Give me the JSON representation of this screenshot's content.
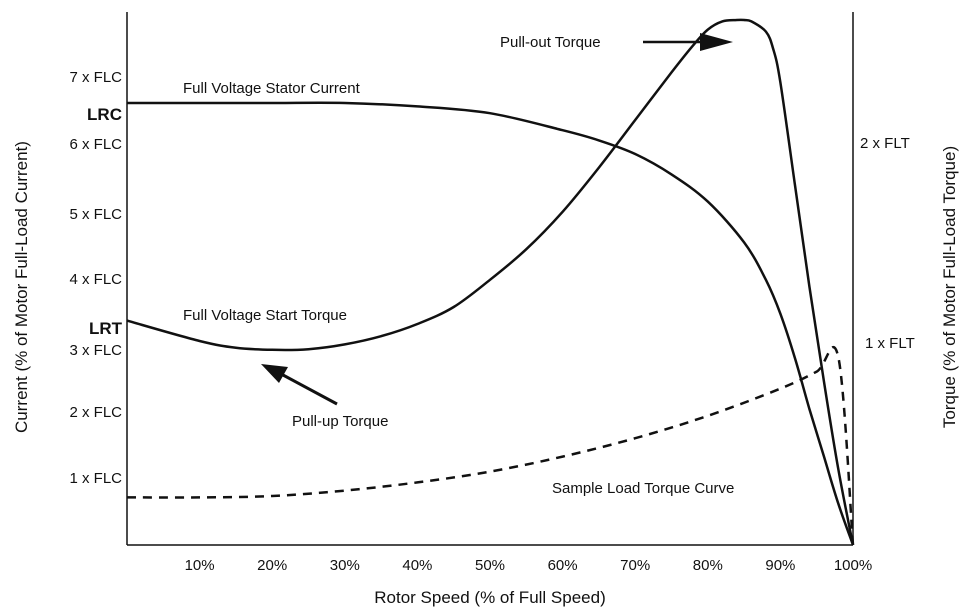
{
  "chart_data": {
    "type": "line",
    "title": "",
    "xlabel": "Rotor Speed (% of Full Speed)",
    "ylabel_left": "Current (% of Motor Full-Load Current)",
    "ylabel_right": "Torque (% of Motor Full-Load Torque)",
    "x_ticks": [
      "10%",
      "20%",
      "30%",
      "40%",
      "50%",
      "60%",
      "70%",
      "80%",
      "90%",
      "100%"
    ],
    "y_left_ticks": [
      "1 x FLC",
      "2 x FLC",
      "3 x FLC",
      "4 x FLC",
      "5 x FLC",
      "6 x FLC",
      "7 x FLC"
    ],
    "y_right_ticks": [
      "1 x FLT",
      "2 x FLT"
    ],
    "markers": {
      "lrc": "LRC",
      "lrt": "LRT"
    },
    "xlim": [
      0,
      100
    ],
    "ylim_current": [
      0,
      8
    ],
    "series": [
      {
        "name": "Full Voltage Stator Current",
        "axis": "current",
        "style": "solid",
        "x": [
          0,
          10,
          20,
          30,
          40,
          50,
          60,
          65,
          70,
          75,
          80,
          85,
          88,
          90,
          92,
          94,
          96,
          98,
          100
        ],
        "y": [
          6.5,
          6.5,
          6.5,
          6.5,
          6.45,
          6.35,
          6.1,
          5.95,
          5.75,
          5.45,
          5.05,
          4.45,
          3.9,
          3.4,
          2.75,
          2.0,
          1.3,
          0.6,
          0
        ]
      },
      {
        "name": "Full Voltage Start Torque",
        "axis": "current",
        "style": "solid",
        "x": [
          0,
          10,
          15,
          20,
          25,
          30,
          35,
          40,
          45,
          50,
          55,
          60,
          65,
          70,
          75,
          78,
          80,
          82,
          84,
          85,
          86,
          88,
          89,
          90,
          92,
          94,
          96,
          98,
          100
        ],
        "y": [
          3.3,
          3.0,
          2.9,
          2.87,
          2.88,
          2.95,
          3.07,
          3.25,
          3.5,
          3.9,
          4.35,
          4.9,
          5.55,
          6.25,
          6.95,
          7.35,
          7.58,
          7.7,
          7.72,
          7.72,
          7.7,
          7.55,
          7.3,
          6.8,
          5.3,
          3.8,
          2.4,
          1.1,
          0
        ]
      },
      {
        "name": "Sample Load Torque Curve",
        "axis": "current",
        "style": "dashed",
        "x": [
          0,
          10,
          20,
          30,
          40,
          50,
          60,
          70,
          80,
          90,
          95,
          98,
          100
        ],
        "y": [
          0.7,
          0.7,
          0.72,
          0.8,
          0.92,
          1.08,
          1.3,
          1.57,
          1.9,
          2.3,
          2.55,
          2.75,
          0
        ]
      }
    ],
    "annotations": {
      "pull_out": "Pull-out Torque",
      "pull_up": "Pull-up Torque",
      "stator_current": "Full Voltage Stator Current",
      "start_torque": "Full Voltage Start Torque",
      "load_curve": "Sample Load Torque Curve"
    }
  }
}
